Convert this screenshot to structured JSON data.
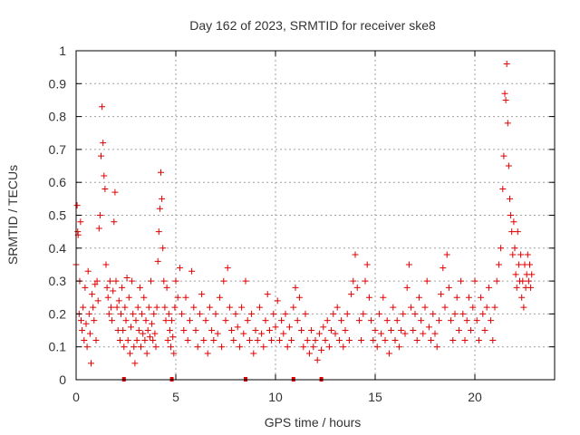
{
  "chart_data": {
    "type": "scatter",
    "title": "Day 162 of 2023, SRMTID for receiver ske8",
    "xlabel": "GPS time / hours",
    "ylabel": "SRMTID / TECUs",
    "xlim": [
      0,
      24
    ],
    "ylim": [
      0,
      1
    ],
    "x_ticks": [
      0,
      5,
      10,
      15,
      20
    ],
    "x_tick_labels": [
      "0",
      "5",
      "10",
      "15",
      "20"
    ],
    "y_ticks": [
      0,
      0.1,
      0.2,
      0.3,
      0.4,
      0.5,
      0.6,
      0.7,
      0.8,
      0.9,
      1
    ],
    "y_tick_labels": [
      "0",
      "0.1",
      "0.2",
      "0.3",
      "0.4",
      "0.5",
      "0.6",
      "0.7",
      "0.8",
      "0.9",
      "1"
    ],
    "grid": true,
    "marker": "+",
    "color": "#e00000",
    "series": [
      {
        "name": "SRMTID",
        "points": [
          [
            0.0,
            0.35
          ],
          [
            0.05,
            0.53
          ],
          [
            0.08,
            0.45
          ],
          [
            0.1,
            0.44
          ],
          [
            0.15,
            0.2
          ],
          [
            0.18,
            0.3
          ],
          [
            0.22,
            0.48
          ],
          [
            0.25,
            0.18
          ],
          [
            0.3,
            0.15
          ],
          [
            0.35,
            0.22
          ],
          [
            0.4,
            0.12
          ],
          [
            0.45,
            0.28
          ],
          [
            0.5,
            0.17
          ],
          [
            0.55,
            0.1
          ],
          [
            0.6,
            0.33
          ],
          [
            0.65,
            0.2
          ],
          [
            0.7,
            0.14
          ],
          [
            0.75,
            0.05
          ],
          [
            0.8,
            0.26
          ],
          [
            0.85,
            0.22
          ],
          [
            0.9,
            0.18
          ],
          [
            0.95,
            0.29
          ],
          [
            1.0,
            0.12
          ],
          [
            1.05,
            0.3
          ],
          [
            1.1,
            0.24
          ],
          [
            1.15,
            0.46
          ],
          [
            1.2,
            0.5
          ],
          [
            1.25,
            0.68
          ],
          [
            1.3,
            0.83
          ],
          [
            1.35,
            0.72
          ],
          [
            1.4,
            0.62
          ],
          [
            1.45,
            0.58
          ],
          [
            1.5,
            0.35
          ],
          [
            1.55,
            0.28
          ],
          [
            1.6,
            0.25
          ],
          [
            1.65,
            0.2
          ],
          [
            1.7,
            0.3
          ],
          [
            1.75,
            0.22
          ],
          [
            1.8,
            0.18
          ],
          [
            1.85,
            0.27
          ],
          [
            1.9,
            0.48
          ],
          [
            1.95,
            0.57
          ],
          [
            2.0,
            0.3
          ],
          [
            2.05,
            0.22
          ],
          [
            2.1,
            0.15
          ],
          [
            2.15,
            0.24
          ],
          [
            2.2,
            0.12
          ],
          [
            2.25,
            0.2
          ],
          [
            2.3,
            0.28
          ],
          [
            2.35,
            0.15
          ],
          [
            2.4,
            0.1
          ],
          [
            2.45,
            0.22
          ],
          [
            2.5,
            0.18
          ],
          [
            2.55,
            0.31
          ],
          [
            2.6,
            0.12
          ],
          [
            2.65,
            0.25
          ],
          [
            2.7,
            0.08
          ],
          [
            2.75,
            0.16
          ],
          [
            2.8,
            0.3
          ],
          [
            2.85,
            0.2
          ],
          [
            2.9,
            0.1
          ],
          [
            2.95,
            0.05
          ],
          [
            3.0,
            0.18
          ],
          [
            3.05,
            0.12
          ],
          [
            3.1,
            0.22
          ],
          [
            3.15,
            0.15
          ],
          [
            3.2,
            0.28
          ],
          [
            3.25,
            0.1
          ],
          [
            3.3,
            0.2
          ],
          [
            3.35,
            0.14
          ],
          [
            3.4,
            0.25
          ],
          [
            3.45,
            0.12
          ],
          [
            3.5,
            0.18
          ],
          [
            3.55,
            0.08
          ],
          [
            3.6,
            0.15
          ],
          [
            3.65,
            0.22
          ],
          [
            3.7,
            0.13
          ],
          [
            3.75,
            0.3
          ],
          [
            3.8,
            0.17
          ],
          [
            3.85,
            0.12
          ],
          [
            3.9,
            0.2
          ],
          [
            3.95,
            0.14
          ],
          [
            4.0,
            0.1
          ],
          [
            4.05,
            0.22
          ],
          [
            4.1,
            0.36
          ],
          [
            4.15,
            0.45
          ],
          [
            4.2,
            0.52
          ],
          [
            4.25,
            0.63
          ],
          [
            4.3,
            0.55
          ],
          [
            4.35,
            0.4
          ],
          [
            4.4,
            0.3
          ],
          [
            4.45,
            0.22
          ],
          [
            4.5,
            0.18
          ],
          [
            4.55,
            0.28
          ],
          [
            4.6,
            0.12
          ],
          [
            4.65,
            0.2
          ],
          [
            4.7,
            0.15
          ],
          [
            4.75,
            0.1
          ],
          [
            4.8,
            0.18
          ],
          [
            4.85,
            0.13
          ],
          [
            4.9,
            0.08
          ],
          [
            4.95,
            0.22
          ],
          [
            5.0,
            0.3
          ],
          [
            5.1,
            0.25
          ],
          [
            5.2,
            0.34
          ],
          [
            5.3,
            0.2
          ],
          [
            5.4,
            0.15
          ],
          [
            5.5,
            0.25
          ],
          [
            5.6,
            0.12
          ],
          [
            5.7,
            0.18
          ],
          [
            5.8,
            0.33
          ],
          [
            5.9,
            0.22
          ],
          [
            6.0,
            0.15
          ],
          [
            6.1,
            0.1
          ],
          [
            6.2,
            0.2
          ],
          [
            6.3,
            0.26
          ],
          [
            6.4,
            0.12
          ],
          [
            6.5,
            0.18
          ],
          [
            6.6,
            0.08
          ],
          [
            6.7,
            0.22
          ],
          [
            6.8,
            0.15
          ],
          [
            6.9,
            0.12
          ],
          [
            7.0,
            0.2
          ],
          [
            7.1,
            0.14
          ],
          [
            7.2,
            0.25
          ],
          [
            7.3,
            0.1
          ],
          [
            7.4,
            0.3
          ],
          [
            7.5,
            0.18
          ],
          [
            7.6,
            0.34
          ],
          [
            7.7,
            0.22
          ],
          [
            7.8,
            0.15
          ],
          [
            7.9,
            0.12
          ],
          [
            8.0,
            0.2
          ],
          [
            8.1,
            0.16
          ],
          [
            8.2,
            0.1
          ],
          [
            8.3,
            0.22
          ],
          [
            8.4,
            0.14
          ],
          [
            8.5,
            0.3
          ],
          [
            8.6,
            0.18
          ],
          [
            8.7,
            0.12
          ],
          [
            8.8,
            0.2
          ],
          [
            8.9,
            0.08
          ],
          [
            9.0,
            0.15
          ],
          [
            9.1,
            0.12
          ],
          [
            9.2,
            0.22
          ],
          [
            9.3,
            0.14
          ],
          [
            9.4,
            0.1
          ],
          [
            9.5,
            0.18
          ],
          [
            9.6,
            0.26
          ],
          [
            9.7,
            0.15
          ],
          [
            9.8,
            0.12
          ],
          [
            9.9,
            0.2
          ],
          [
            10.0,
            0.16
          ],
          [
            10.1,
            0.24
          ],
          [
            10.2,
            0.12
          ],
          [
            10.3,
            0.18
          ],
          [
            10.4,
            0.14
          ],
          [
            10.5,
            0.2
          ],
          [
            10.6,
            0.1
          ],
          [
            10.7,
            0.16
          ],
          [
            10.8,
            0.12
          ],
          [
            10.9,
            0.22
          ],
          [
            11.0,
            0.28
          ],
          [
            11.1,
            0.18
          ],
          [
            11.2,
            0.25
          ],
          [
            11.3,
            0.15
          ],
          [
            11.4,
            0.1
          ],
          [
            11.5,
            0.2
          ],
          [
            11.6,
            0.12
          ],
          [
            11.7,
            0.08
          ],
          [
            11.8,
            0.15
          ],
          [
            11.9,
            0.1
          ],
          [
            12.0,
            0.12
          ],
          [
            12.1,
            0.06
          ],
          [
            12.2,
            0.14
          ],
          [
            12.3,
            0.09
          ],
          [
            12.4,
            0.16
          ],
          [
            12.5,
            0.12
          ],
          [
            12.6,
            0.18
          ],
          [
            12.7,
            0.1
          ],
          [
            12.8,
            0.15
          ],
          [
            12.9,
            0.2
          ],
          [
            13.0,
            0.14
          ],
          [
            13.1,
            0.22
          ],
          [
            13.2,
            0.12
          ],
          [
            13.3,
            0.18
          ],
          [
            13.4,
            0.1
          ],
          [
            13.5,
            0.15
          ],
          [
            13.6,
            0.2
          ],
          [
            13.7,
            0.12
          ],
          [
            13.8,
            0.26
          ],
          [
            13.9,
            0.3
          ],
          [
            14.0,
            0.38
          ],
          [
            14.1,
            0.28
          ],
          [
            14.2,
            0.18
          ],
          [
            14.3,
            0.12
          ],
          [
            14.4,
            0.2
          ],
          [
            14.5,
            0.3
          ],
          [
            14.6,
            0.35
          ],
          [
            14.7,
            0.25
          ],
          [
            14.8,
            0.18
          ],
          [
            14.9,
            0.12
          ],
          [
            15.0,
            0.15
          ],
          [
            15.1,
            0.1
          ],
          [
            15.2,
            0.2
          ],
          [
            15.3,
            0.14
          ],
          [
            15.4,
            0.25
          ],
          [
            15.5,
            0.12
          ],
          [
            15.6,
            0.18
          ],
          [
            15.7,
            0.08
          ],
          [
            15.8,
            0.15
          ],
          [
            15.9,
            0.22
          ],
          [
            16.0,
            0.12
          ],
          [
            16.1,
            0.18
          ],
          [
            16.2,
            0.1
          ],
          [
            16.3,
            0.15
          ],
          [
            16.4,
            0.2
          ],
          [
            16.5,
            0.14
          ],
          [
            16.6,
            0.28
          ],
          [
            16.7,
            0.35
          ],
          [
            16.8,
            0.22
          ],
          [
            16.9,
            0.15
          ],
          [
            17.0,
            0.2
          ],
          [
            17.1,
            0.12
          ],
          [
            17.2,
            0.25
          ],
          [
            17.3,
            0.18
          ],
          [
            17.4,
            0.14
          ],
          [
            17.5,
            0.22
          ],
          [
            17.6,
            0.3
          ],
          [
            17.7,
            0.16
          ],
          [
            17.8,
            0.12
          ],
          [
            17.9,
            0.2
          ],
          [
            18.0,
            0.14
          ],
          [
            18.1,
            0.1
          ],
          [
            18.2,
            0.18
          ],
          [
            18.3,
            0.26
          ],
          [
            18.4,
            0.34
          ],
          [
            18.5,
            0.22
          ],
          [
            18.6,
            0.38
          ],
          [
            18.7,
            0.28
          ],
          [
            18.8,
            0.18
          ],
          [
            18.9,
            0.12
          ],
          [
            19.0,
            0.2
          ],
          [
            19.1,
            0.25
          ],
          [
            19.2,
            0.15
          ],
          [
            19.3,
            0.3
          ],
          [
            19.4,
            0.2
          ],
          [
            19.5,
            0.12
          ],
          [
            19.6,
            0.18
          ],
          [
            19.7,
            0.25
          ],
          [
            19.8,
            0.15
          ],
          [
            19.9,
            0.22
          ],
          [
            20.0,
            0.3
          ],
          [
            20.1,
            0.18
          ],
          [
            20.2,
            0.12
          ],
          [
            20.3,
            0.25
          ],
          [
            20.4,
            0.2
          ],
          [
            20.5,
            0.15
          ],
          [
            20.6,
            0.22
          ],
          [
            20.7,
            0.28
          ],
          [
            20.8,
            0.18
          ],
          [
            20.9,
            0.12
          ],
          [
            21.0,
            0.22
          ],
          [
            21.1,
            0.3
          ],
          [
            21.2,
            0.35
          ],
          [
            21.3,
            0.4
          ],
          [
            21.4,
            0.58
          ],
          [
            21.45,
            0.68
          ],
          [
            21.5,
            0.87
          ],
          [
            21.55,
            0.85
          ],
          [
            21.6,
            0.96
          ],
          [
            21.65,
            0.78
          ],
          [
            21.7,
            0.65
          ],
          [
            21.75,
            0.55
          ],
          [
            21.8,
            0.5
          ],
          [
            21.85,
            0.45
          ],
          [
            21.9,
            0.38
          ],
          [
            21.95,
            0.48
          ],
          [
            22.0,
            0.4
          ],
          [
            22.05,
            0.32
          ],
          [
            22.1,
            0.28
          ],
          [
            22.15,
            0.45
          ],
          [
            22.2,
            0.35
          ],
          [
            22.25,
            0.3
          ],
          [
            22.3,
            0.38
          ],
          [
            22.35,
            0.25
          ],
          [
            22.4,
            0.3
          ],
          [
            22.45,
            0.22
          ],
          [
            22.5,
            0.35
          ],
          [
            22.55,
            0.28
          ],
          [
            22.6,
            0.32
          ],
          [
            22.65,
            0.38
          ],
          [
            22.7,
            0.3
          ],
          [
            22.75,
            0.35
          ],
          [
            22.8,
            0.28
          ],
          [
            22.85,
            0.32
          ]
        ]
      }
    ],
    "zero_marks_x": [
      2.4,
      4.8,
      8.5,
      10.9,
      12.3
    ]
  }
}
